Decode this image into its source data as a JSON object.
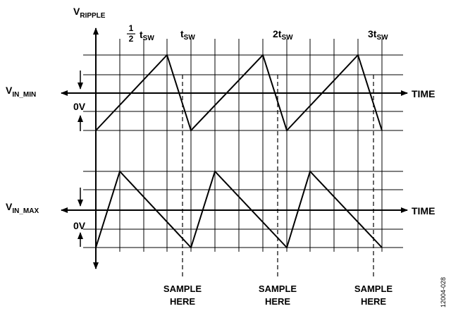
{
  "labels": {
    "y_axis": {
      "main": "V",
      "sub": "RIPPLE"
    },
    "t_half": {
      "num": "1",
      "den": "2",
      "main": "t",
      "sub": "SW"
    },
    "t_sw": {
      "main": "t",
      "sub": "SW"
    },
    "t_2sw": {
      "main": "2t",
      "sub": "SW"
    },
    "t_3sw": {
      "main": "3t",
      "sub": "SW"
    },
    "vin_min": {
      "main": "V",
      "sub": "IN_MIN"
    },
    "vin_max": {
      "main": "V",
      "sub": "IN_MAX"
    },
    "zero_top": "0V",
    "zero_bottom": "0V",
    "time_top": "TIME",
    "time_bottom": "TIME",
    "sample_1": {
      "line1": "SAMPLE",
      "line2": "HERE"
    },
    "sample_2": {
      "line1": "SAMPLE",
      "line2": "HERE"
    },
    "sample_3": {
      "line1": "SAMPLE",
      "line2": "HERE"
    },
    "figure_id": "12004-028"
  },
  "colors": {
    "line": "#000000",
    "background": "#ffffff"
  }
}
